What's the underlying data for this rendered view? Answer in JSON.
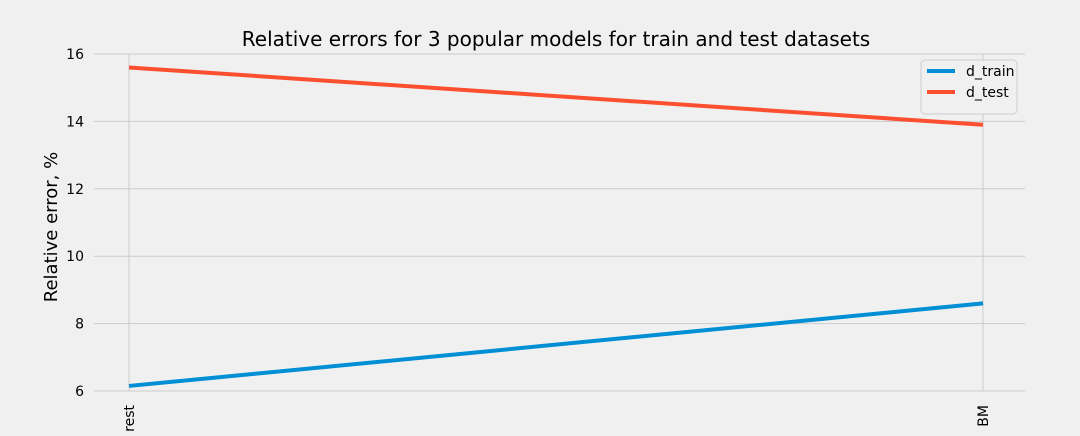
{
  "chart_data": {
    "type": "line",
    "title": "Relative errors for 3 popular models for train and test datasets",
    "xlabel": "",
    "ylabel": "Relative error, %",
    "categories": [
      "rest",
      "BM"
    ],
    "ylim": [
      6,
      16
    ],
    "yticks": [
      6,
      8,
      10,
      12,
      14,
      16
    ],
    "grid": true,
    "legend_position": "top-right",
    "series": [
      {
        "name": "d_train",
        "color": "#008fd5",
        "values": [
          6.15,
          8.6
        ]
      },
      {
        "name": "d_test",
        "color": "#fc4f30",
        "values": [
          15.6,
          13.9
        ]
      }
    ]
  }
}
